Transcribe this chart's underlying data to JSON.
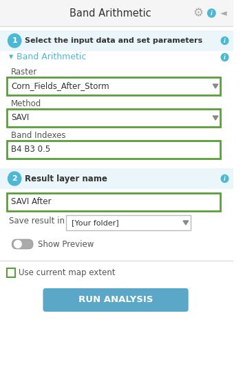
{
  "title": "Band Arithmetic",
  "bg_color": "#ffffff",
  "header_bg": "#f5f5f5",
  "border_color": "#cccccc",
  "green_border": "#5a9e3a",
  "blue_circle_color": "#4db8d4",
  "section1_text": "Select the input data and set parameters",
  "band_arithmetic_link": "Band Arithmetic",
  "raster_label": "Raster",
  "raster_value": "Corn_Fields_After_Storm",
  "method_label": "Method",
  "method_value": "SAVI",
  "band_indexes_label": "Band Indexes",
  "band_indexes_value": "B4 B3 0.5",
  "section2_text": "Result layer name",
  "result_value": "SAVI After",
  "save_result_label": "Save result in",
  "save_result_value": "[Your folder]",
  "show_preview_label": "Show Preview",
  "use_extent_label": "Use current map extent",
  "run_button_text": "RUN ANALYSIS",
  "run_button_color": "#5ba7c8",
  "info_icon_color": "#4db8d4",
  "divider_color": "#dddddd",
  "text_color": "#333333",
  "label_color": "#555555",
  "link_color": "#4db8d4",
  "section_bg": "#eaf6fa"
}
